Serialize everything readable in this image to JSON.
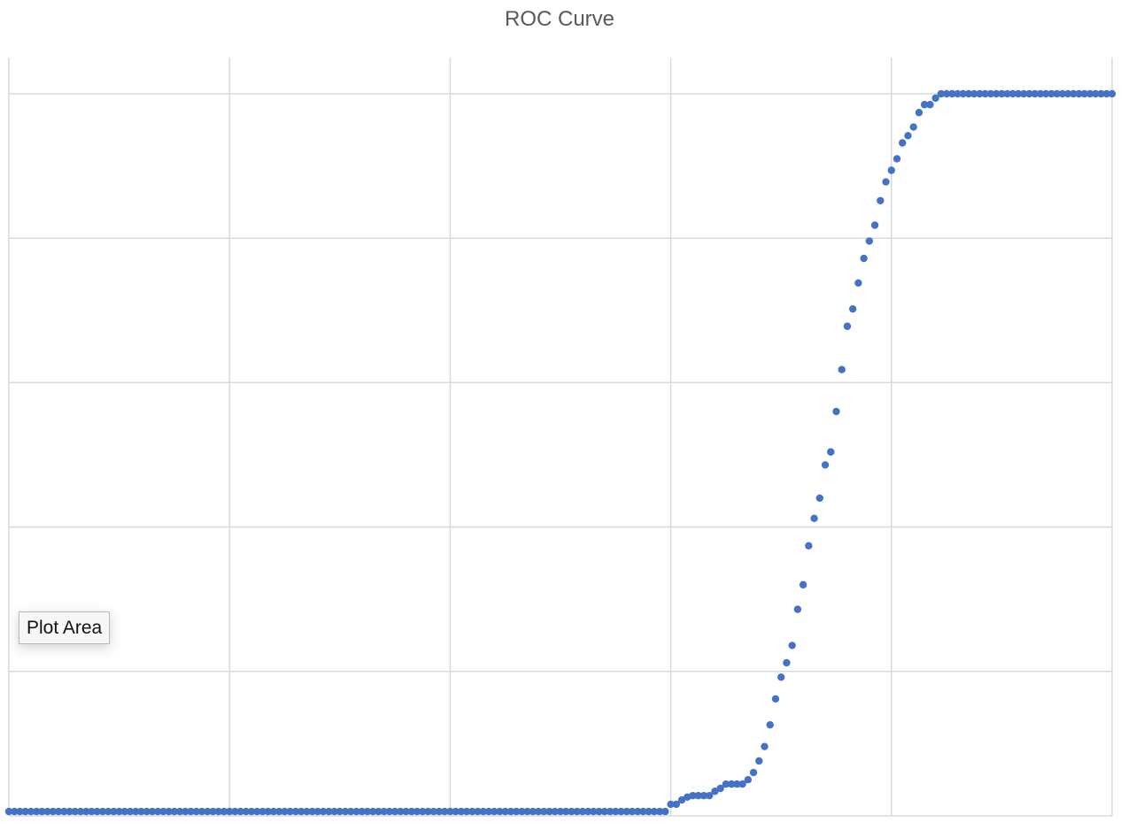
{
  "chart_data": {
    "type": "scatter",
    "title": "ROC Curve",
    "xlabel": "",
    "ylabel": "",
    "xlim": [
      0,
      1
    ],
    "ylim": [
      0,
      1.05
    ],
    "grid": true,
    "x_gridlines": [
      0,
      0.2,
      0.4,
      0.6,
      0.8,
      1.0
    ],
    "y_gridlines": [
      0,
      0.2,
      0.4,
      0.6,
      0.8,
      1.0
    ],
    "series": [
      {
        "marker_color": "#4472C4",
        "x": [
          0.58,
          0.585,
          0.59,
          0.595,
          0.6,
          0.605,
          0.61,
          0.615,
          0.62,
          0.625,
          0.63,
          0.635,
          0.64,
          0.645,
          0.65,
          0.655,
          0.66,
          0.665,
          0.67,
          0.675,
          0.68,
          0.685,
          0.69,
          0.695,
          0.7,
          0.705,
          0.71,
          0.715,
          0.72,
          0.725,
          0.73,
          0.735,
          0.74,
          0.745,
          0.75,
          0.755,
          0.76,
          0.765,
          0.77,
          0.775,
          0.78,
          0.785,
          0.79,
          0.795,
          0.8,
          0.805,
          0.81,
          0.815,
          0.82,
          0.825,
          0.83,
          0.835,
          0.84,
          0.845,
          0.85
        ],
        "y": [
          0.006,
          0.006,
          0.006,
          0.006,
          0.016,
          0.016,
          0.022,
          0.026,
          0.028,
          0.028,
          0.028,
          0.028,
          0.034,
          0.038,
          0.044,
          0.044,
          0.044,
          0.044,
          0.05,
          0.06,
          0.076,
          0.096,
          0.126,
          0.162,
          0.192,
          0.212,
          0.236,
          0.286,
          0.32,
          0.374,
          0.412,
          0.44,
          0.486,
          0.504,
          0.56,
          0.618,
          0.678,
          0.702,
          0.738,
          0.772,
          0.796,
          0.818,
          0.852,
          0.878,
          0.894,
          0.91,
          0.932,
          0.942,
          0.954,
          0.974,
          0.985,
          0.985,
          0.994,
          1.0,
          1.0
        ]
      }
    ]
  },
  "tooltip": {
    "text": "Plot Area"
  }
}
